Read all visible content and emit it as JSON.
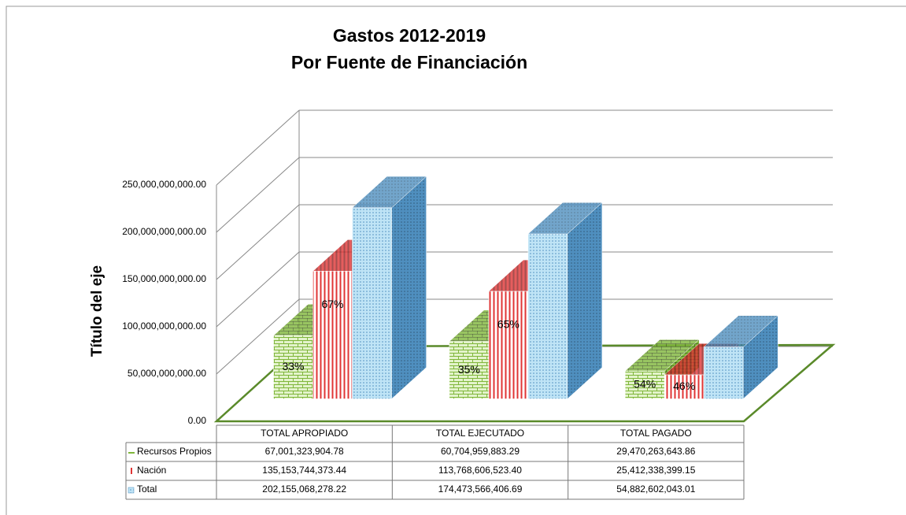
{
  "chart_data": {
    "type": "bar3d",
    "title": [
      "Gastos 2012-2019",
      "Por Fuente de Financiación"
    ],
    "y_label": "Título del eje",
    "categories": [
      "TOTAL APROPIADO",
      "TOTAL EJECUTADO",
      "TOTAL PAGADO"
    ],
    "series": [
      {
        "name": "Recursos Propios",
        "color": "#7fb63a",
        "values": [
          67001323904.78,
          60704959883.29,
          29470263643.86
        ],
        "value_labels": [
          "67,001,323,904.78",
          "60,704,959,883.29",
          "29,470,263,643.86"
        ],
        "percent_labels": [
          "33%",
          "35%",
          "54%"
        ]
      },
      {
        "name": "Nación",
        "color": "#e03535",
        "values": [
          135153744373.44,
          113768606523.4,
          25412338399.15
        ],
        "value_labels": [
          "135,153,744,373.44",
          "113,768,606,523.40",
          "25,412,338,399.15"
        ],
        "percent_labels": [
          "67%",
          "65%",
          "46%"
        ]
      },
      {
        "name": "Total",
        "color": "#4f8fbf",
        "values": [
          202155068278.22,
          174473566406.69,
          54882602043.01
        ],
        "value_labels": [
          "202,155,068,278.22",
          "174,473,566,406.69",
          "54,882,602,043.01"
        ]
      }
    ],
    "ylim": [
      0,
      250000000000
    ],
    "yticks": [
      {
        "value": 0,
        "label": "0.00"
      },
      {
        "value": 50000000000,
        "label": "50,000,000,000.00"
      },
      {
        "value": 100000000000,
        "label": "100,000,000,000.00"
      },
      {
        "value": 150000000000,
        "label": "150,000,000,000.00"
      },
      {
        "value": 200000000000,
        "label": "200,000,000,000.00"
      },
      {
        "value": 250000000000,
        "label": "250,000,000,000.00"
      }
    ],
    "grid": true,
    "data_table": true
  }
}
